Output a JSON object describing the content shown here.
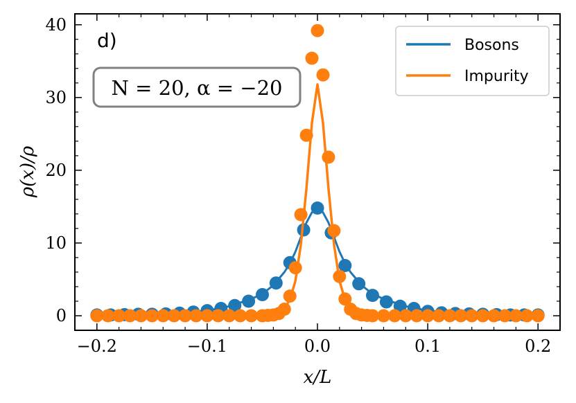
{
  "panel_label": "d)",
  "param_box": "N = 20, α = −20",
  "chart_data": {
    "type": "line",
    "xlabel": "x/L",
    "ylabel": "ρ(x)/ρ",
    "xlim": [
      -0.22,
      0.22
    ],
    "ylim": [
      -2,
      41.5
    ],
    "xticks": [
      {
        "v": -0.2,
        "label": "−0.2"
      },
      {
        "v": -0.1,
        "label": "−0.1"
      },
      {
        "v": 0.0,
        "label": "0.0"
      },
      {
        "v": 0.1,
        "label": "0.1"
      },
      {
        "v": 0.2,
        "label": "0.2"
      }
    ],
    "yticks": [
      {
        "v": 0,
        "label": "0"
      },
      {
        "v": 10,
        "label": "10"
      },
      {
        "v": 20,
        "label": "20"
      },
      {
        "v": 30,
        "label": "30"
      },
      {
        "v": 40,
        "label": "40"
      }
    ],
    "legend_position": "top-right",
    "grid": false,
    "series": [
      {
        "name": "Bosons",
        "color": "#1f77b4",
        "line": {
          "x": [
            -0.2,
            -0.15,
            -0.1,
            -0.08,
            -0.06,
            -0.05,
            -0.04,
            -0.03,
            -0.025,
            -0.02,
            -0.015,
            -0.01,
            -0.005,
            0.0,
            0.005,
            0.01,
            0.015,
            0.02,
            0.025,
            0.03,
            0.04,
            0.05,
            0.06,
            0.08,
            0.1,
            0.15,
            0.2
          ],
          "y": [
            0.1,
            0.2,
            0.7,
            1.3,
            2.3,
            3.0,
            4.2,
            6.0,
            7.2,
            8.8,
            10.8,
            12.8,
            14.2,
            14.7,
            14.2,
            12.8,
            10.8,
            8.8,
            7.2,
            6.0,
            4.2,
            3.0,
            2.3,
            1.3,
            0.7,
            0.2,
            0.1
          ]
        },
        "points": {
          "x": [
            -0.2,
            -0.1875,
            -0.175,
            -0.1625,
            -0.15,
            -0.1375,
            -0.125,
            -0.1125,
            -0.1,
            -0.0875,
            -0.075,
            -0.0625,
            -0.05,
            -0.0375,
            -0.025,
            -0.0125,
            0.0,
            0.0125,
            0.025,
            0.0375,
            0.05,
            0.0625,
            0.075,
            0.0875,
            0.1,
            0.1125,
            0.125,
            0.1375,
            0.15,
            0.1625,
            0.175,
            0.1875,
            0.2
          ],
          "y": [
            0.1,
            0.1,
            0.15,
            0.2,
            0.2,
            0.25,
            0.35,
            0.5,
            0.7,
            1.0,
            1.4,
            2.0,
            2.9,
            4.5,
            7.3,
            11.8,
            14.8,
            11.4,
            6.9,
            4.4,
            2.8,
            1.9,
            1.3,
            1.0,
            0.6,
            0.4,
            0.3,
            0.25,
            0.2,
            0.15,
            0.1,
            0.1,
            0.1
          ]
        }
      },
      {
        "name": "Impurity",
        "color": "#ff7f0e",
        "line": {
          "x": [
            -0.2,
            -0.1,
            -0.05,
            -0.04,
            -0.03,
            -0.025,
            -0.02,
            -0.015,
            -0.01,
            -0.005,
            0.0,
            0.005,
            0.01,
            0.015,
            0.02,
            0.025,
            0.03,
            0.04,
            0.05,
            0.1,
            0.2
          ],
          "y": [
            0.0,
            0.0,
            0.1,
            0.3,
            1.0,
            2.2,
            4.8,
            9.8,
            17.5,
            26.5,
            31.8,
            26.5,
            17.5,
            9.8,
            4.8,
            2.2,
            1.0,
            0.3,
            0.1,
            0.0,
            0.0
          ],
          "width": 3.5
        },
        "points": {
          "x": [
            -0.2,
            -0.19,
            -0.18,
            -0.17,
            -0.16,
            -0.15,
            -0.14,
            -0.13,
            -0.12,
            -0.11,
            -0.1,
            -0.09,
            -0.08,
            -0.07,
            -0.06,
            -0.05,
            -0.045,
            -0.04,
            -0.035,
            -0.03,
            -0.025,
            -0.02,
            -0.015,
            -0.01,
            -0.005,
            0.0,
            0.005,
            0.01,
            0.015,
            0.02,
            0.025,
            0.03,
            0.035,
            0.04,
            0.045,
            0.05,
            0.06,
            0.07,
            0.08,
            0.09,
            0.1,
            0.11,
            0.12,
            0.13,
            0.14,
            0.15,
            0.16,
            0.17,
            0.18,
            0.19,
            0.2
          ],
          "y": [
            0.0,
            0.0,
            0.0,
            0.0,
            0.0,
            0.0,
            0.0,
            0.0,
            0.0,
            0.0,
            0.0,
            0.0,
            0.0,
            0.0,
            0.0,
            0.0,
            0.05,
            0.1,
            0.3,
            0.9,
            2.7,
            6.6,
            13.9,
            24.8,
            35.4,
            39.2,
            33.1,
            21.8,
            11.7,
            5.4,
            2.3,
            0.9,
            0.3,
            0.1,
            0.05,
            0.0,
            0.0,
            0.0,
            0.0,
            0.0,
            0.0,
            0.0,
            0.0,
            0.0,
            0.0,
            0.0,
            0.0,
            0.0,
            0.0,
            0.0,
            0.0
          ]
        }
      }
    ]
  }
}
